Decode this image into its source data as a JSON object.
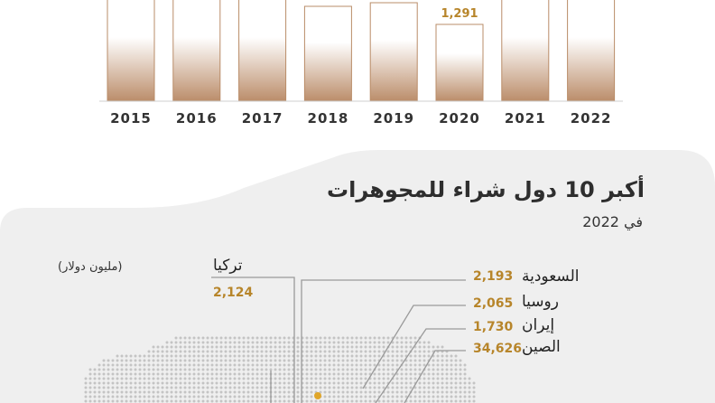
{
  "chart_data": [
    {
      "type": "bar",
      "categories": [
        "2015",
        "2016",
        "2017",
        "2018",
        "2019",
        "2020",
        "2021",
        "2022"
      ],
      "values": [
        null,
        null,
        null,
        null,
        null,
        1291,
        null,
        null
      ],
      "data_labels": [
        "",
        "",
        "",
        "",
        "",
        "1,291",
        "",
        ""
      ]
    },
    {
      "type": "table",
      "title": "أكبر 10 دول شراء للمجوهرات",
      "subtitle": "في 2022",
      "unit": "(مليون دولار)",
      "rows": [
        {
          "country": "تركيا",
          "value": 2124,
          "label": "2,124"
        },
        {
          "country": "السعودية",
          "value": 2193,
          "label": "2,193"
        },
        {
          "country": "روسيا",
          "value": 2065,
          "label": "2,065"
        },
        {
          "country": "إيران",
          "value": 1730,
          "label": "1,730"
        },
        {
          "country": "الصين",
          "value": 34626,
          "label": "34,626"
        }
      ]
    }
  ],
  "colors": {
    "bar_top": "#ffffff",
    "bar_bottom": "#b98c68",
    "bar_border": "#b98c68",
    "accent_gold": "#e0a62a",
    "value_text": "#b7852a",
    "panel_bg": "#eeeeee",
    "leader_line": "#9a9a9a"
  }
}
